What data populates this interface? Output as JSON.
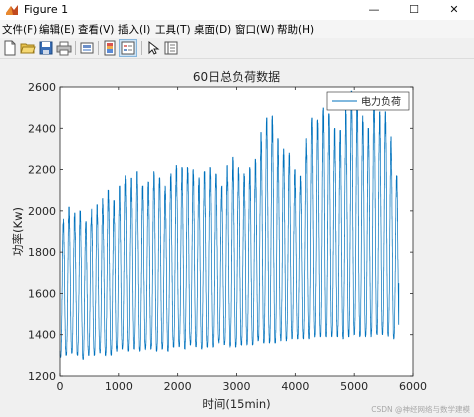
{
  "window": {
    "title": "Figure 1"
  },
  "titlebar_buttons": {
    "minimize": "—",
    "maximize": "☐",
    "close": "✕"
  },
  "menu": [
    "文件(F)",
    "编辑(E)",
    "查看(V)",
    "插入(I)",
    "工具(T)",
    "桌面(D)",
    "窗口(W)",
    "帮助(H)"
  ],
  "toolbar": {
    "icons": [
      "new-figure-icon",
      "open-file-icon",
      "save-icon",
      "print-icon",
      "link-plot-icon",
      "insert-colorbar-icon",
      "insert-legend-icon",
      "edit-plot-arrow-icon",
      "property-inspector-icon"
    ]
  },
  "colors": {
    "line": "#0072bd",
    "axes_bg": "#ffffff",
    "figure_bg": "#f0f0f0",
    "text": "#262626"
  },
  "chart_data": {
    "type": "line",
    "title": "60日总负荷数据",
    "xlabel": "时间(15min)",
    "ylabel": "功率(Kw)",
    "xlim": [
      0,
      6000
    ],
    "ylim": [
      1200,
      2600
    ],
    "xticks": [
      0,
      1000,
      2000,
      3000,
      4000,
      5000,
      6000
    ],
    "yticks": [
      1200,
      1400,
      1600,
      1800,
      2000,
      2200,
      2400,
      2600
    ],
    "legend": {
      "entries": [
        "电力负荷"
      ],
      "location": "top-right"
    },
    "grid": false,
    "series": [
      {
        "name": "电力负荷",
        "sampling": "96 points per day (15 min), 60 days",
        "daily_peaks": [
          1960,
          2020,
          1990,
          2000,
          1950,
          2010,
          2030,
          2060,
          2100,
          2050,
          2120,
          2170,
          2160,
          2190,
          2120,
          2140,
          2190,
          2160,
          2120,
          2180,
          2220,
          2210,
          2210,
          2200,
          2160,
          2190,
          2210,
          2180,
          2120,
          2220,
          2260,
          2210,
          2180,
          2210,
          2250,
          2380,
          2450,
          2460,
          2350,
          2300,
          2280,
          2200,
          2170,
          2350,
          2450,
          2440,
          2500,
          2470,
          2400,
          2390,
          2490,
          2580,
          2540,
          2460,
          2400,
          2550,
          2480,
          2480,
          2360,
          2170
        ],
        "daily_troughs": [
          1290,
          1300,
          1310,
          1300,
          1280,
          1300,
          1300,
          1310,
          1300,
          1300,
          1320,
          1330,
          1320,
          1330,
          1320,
          1330,
          1330,
          1320,
          1330,
          1320,
          1340,
          1340,
          1330,
          1350,
          1340,
          1330,
          1340,
          1340,
          1360,
          1350,
          1340,
          1340,
          1350,
          1350,
          1350,
          1370,
          1360,
          1360,
          1360,
          1370,
          1370,
          1380,
          1380,
          1380,
          1380,
          1390,
          1390,
          1390,
          1390,
          1390,
          1380,
          1390,
          1400,
          1390,
          1390,
          1390,
          1400,
          1400,
          1390,
          1380
        ],
        "end_value": 1650
      }
    ]
  },
  "watermark": "CSDN @神经网络与数学建模"
}
